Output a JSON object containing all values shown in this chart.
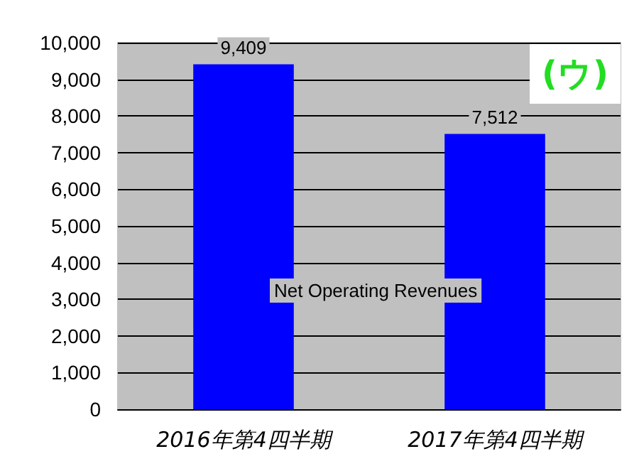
{
  "chart_data": {
    "type": "bar",
    "categories": [
      "2016年第4四半期",
      "2017年第4四半期"
    ],
    "values": [
      9409,
      7512
    ],
    "value_labels": [
      "9,409",
      "7,512"
    ],
    "color": "#0000ff",
    "ylim": [
      0,
      10000
    ],
    "yticks": [
      {
        "value": 0,
        "label": "0"
      },
      {
        "value": 1000,
        "label": "1,000"
      },
      {
        "value": 2000,
        "label": "2,000"
      },
      {
        "value": 3000,
        "label": "3,000"
      },
      {
        "value": 4000,
        "label": "4,000"
      },
      {
        "value": 5000,
        "label": "5,000"
      },
      {
        "value": 6000,
        "label": "6,000"
      },
      {
        "value": 7000,
        "label": "7,000"
      },
      {
        "value": 8000,
        "label": "8,000"
      },
      {
        "value": 9000,
        "label": "9,000"
      },
      {
        "value": 10000,
        "label": "10,000"
      }
    ],
    "grid": "y",
    "annotations": [
      "Net Operating Revenues",
      "(ウ)"
    ]
  }
}
